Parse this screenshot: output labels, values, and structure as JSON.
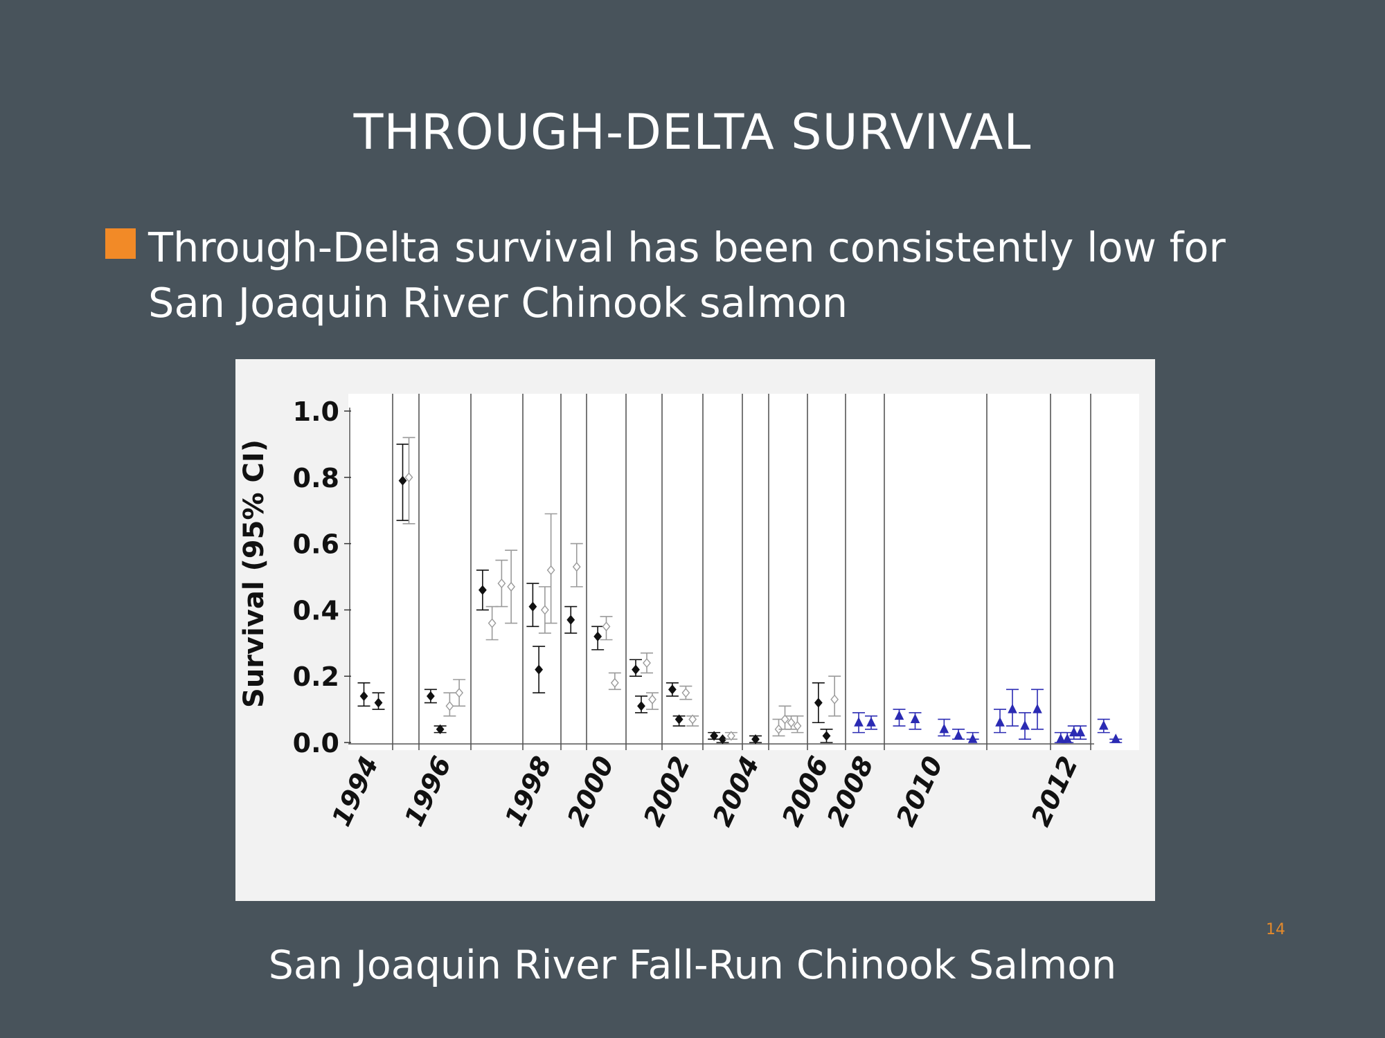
{
  "slide": {
    "title": "THROUGH-DELTA SURVIVAL",
    "bullet": "Through-Delta survival has been consistently low for San Joaquin River Chinook salmon",
    "caption": "San Joaquin River Fall-Run Chinook Salmon",
    "page_number": "14",
    "colors": {
      "background": "#48535b",
      "bullet_marker": "#f28a27",
      "page_number": "#e58a2b"
    }
  },
  "chart_data": {
    "type": "scatter",
    "title": "",
    "ylabel": "Survival (95% CI)",
    "xlabel": "",
    "ylim": [
      0.0,
      1.0
    ],
    "y_ticks": [
      "0.0",
      "0.2",
      "0.4",
      "0.6",
      "0.8",
      "1.0"
    ],
    "x_ticks": [
      "1994",
      "1996",
      "1998",
      "2000",
      "2002",
      "2004",
      "2006",
      "2008",
      "2010",
      "2012"
    ],
    "grid": "vertical separators between release groups",
    "series": [
      {
        "color": "#111111",
        "marker": "filled diamond",
        "points": [
          {
            "year": "1994",
            "y": 0.14,
            "lo": 0.11,
            "hi": 0.18
          },
          {
            "year": "1994",
            "y": 0.12,
            "lo": 0.1,
            "hi": 0.15
          },
          {
            "year": "1995",
            "y": 0.79,
            "lo": 0.67,
            "hi": 0.9
          },
          {
            "year": "1996",
            "y": 0.14,
            "lo": 0.12,
            "hi": 0.16
          },
          {
            "year": "1996",
            "y": 0.04,
            "lo": 0.03,
            "hi": 0.05
          },
          {
            "year": "1997",
            "y": 0.46,
            "lo": 0.4,
            "hi": 0.52
          },
          {
            "year": "1998",
            "y": 0.41,
            "lo": 0.35,
            "hi": 0.48
          },
          {
            "year": "1998",
            "y": 0.22,
            "lo": 0.15,
            "hi": 0.29
          },
          {
            "year": "1999",
            "y": 0.37,
            "lo": 0.33,
            "hi": 0.41
          },
          {
            "year": "2000",
            "y": 0.32,
            "lo": 0.28,
            "hi": 0.35
          },
          {
            "year": "2001",
            "y": 0.22,
            "lo": 0.2,
            "hi": 0.25
          },
          {
            "year": "2001",
            "y": 0.11,
            "lo": 0.09,
            "hi": 0.14
          },
          {
            "year": "2002",
            "y": 0.16,
            "lo": 0.14,
            "hi": 0.18
          },
          {
            "year": "2002",
            "y": 0.07,
            "lo": 0.05,
            "hi": 0.08
          },
          {
            "year": "2003",
            "y": 0.02,
            "lo": 0.01,
            "hi": 0.03
          },
          {
            "year": "2003",
            "y": 0.01,
            "lo": 0.0,
            "hi": 0.01
          },
          {
            "year": "2004",
            "y": 0.01,
            "lo": 0.0,
            "hi": 0.02
          },
          {
            "year": "2006",
            "y": 0.12,
            "lo": 0.06,
            "hi": 0.18
          },
          {
            "year": "2006",
            "y": 0.02,
            "lo": 0.0,
            "hi": 0.04
          }
        ]
      },
      {
        "color": "#9a9a9a",
        "marker": "open diamond",
        "points": [
          {
            "year": "1995",
            "y": 0.8,
            "lo": 0.66,
            "hi": 0.92
          },
          {
            "year": "1996",
            "y": 0.11,
            "lo": 0.08,
            "hi": 0.15
          },
          {
            "year": "1996",
            "y": 0.15,
            "lo": 0.11,
            "hi": 0.19
          },
          {
            "year": "1997",
            "y": 0.36,
            "lo": 0.31,
            "hi": 0.41
          },
          {
            "year": "1997",
            "y": 0.48,
            "lo": 0.41,
            "hi": 0.55
          },
          {
            "year": "1997",
            "y": 0.47,
            "lo": 0.36,
            "hi": 0.58
          },
          {
            "year": "1998",
            "y": 0.4,
            "lo": 0.33,
            "hi": 0.47
          },
          {
            "year": "1998",
            "y": 0.52,
            "lo": 0.36,
            "hi": 0.69
          },
          {
            "year": "1999",
            "y": 0.53,
            "lo": 0.47,
            "hi": 0.6
          },
          {
            "year": "2000",
            "y": 0.35,
            "lo": 0.31,
            "hi": 0.38
          },
          {
            "year": "2000",
            "y": 0.18,
            "lo": 0.16,
            "hi": 0.21
          },
          {
            "year": "2001",
            "y": 0.24,
            "lo": 0.21,
            "hi": 0.27
          },
          {
            "year": "2001",
            "y": 0.13,
            "lo": 0.1,
            "hi": 0.15
          },
          {
            "year": "2002",
            "y": 0.15,
            "lo": 0.13,
            "hi": 0.17
          },
          {
            "year": "2002",
            "y": 0.07,
            "lo": 0.05,
            "hi": 0.08
          },
          {
            "year": "2003",
            "y": 0.02,
            "lo": 0.01,
            "hi": 0.03
          },
          {
            "year": "2005",
            "y": 0.04,
            "lo": 0.02,
            "hi": 0.07
          },
          {
            "year": "2005",
            "y": 0.07,
            "lo": 0.04,
            "hi": 0.11
          },
          {
            "year": "2005",
            "y": 0.06,
            "lo": 0.04,
            "hi": 0.08
          },
          {
            "year": "2005",
            "y": 0.05,
            "lo": 0.03,
            "hi": 0.08
          },
          {
            "year": "2006",
            "y": 0.13,
            "lo": 0.08,
            "hi": 0.2
          }
        ]
      },
      {
        "color": "#2b2bb3",
        "marker": "filled triangle",
        "points": [
          {
            "year": "2007",
            "y": 0.06,
            "lo": 0.03,
            "hi": 0.09
          },
          {
            "year": "2007",
            "y": 0.06,
            "lo": 0.04,
            "hi": 0.08
          },
          {
            "year": "2008",
            "y": 0.08,
            "lo": 0.05,
            "hi": 0.1
          },
          {
            "year": "2008",
            "y": 0.07,
            "lo": 0.04,
            "hi": 0.09
          },
          {
            "year": "2009",
            "y": 0.04,
            "lo": 0.02,
            "hi": 0.07
          },
          {
            "year": "2009",
            "y": 0.02,
            "lo": 0.01,
            "hi": 0.04
          },
          {
            "year": "2009",
            "y": 0.01,
            "lo": 0.01,
            "hi": 0.03
          },
          {
            "year": "2010",
            "y": 0.06,
            "lo": 0.03,
            "hi": 0.1
          },
          {
            "year": "2010",
            "y": 0.1,
            "lo": 0.05,
            "hi": 0.16
          },
          {
            "year": "2010",
            "y": 0.05,
            "lo": 0.01,
            "hi": 0.09
          },
          {
            "year": "2010",
            "y": 0.1,
            "lo": 0.04,
            "hi": 0.16
          },
          {
            "year": "2011",
            "y": 0.01,
            "lo": 0.0,
            "hi": 0.03
          },
          {
            "year": "2011",
            "y": 0.01,
            "lo": 0.0,
            "hi": 0.03
          },
          {
            "year": "2011",
            "y": 0.03,
            "lo": 0.01,
            "hi": 0.05
          },
          {
            "year": "2011",
            "y": 0.03,
            "lo": 0.01,
            "hi": 0.05
          },
          {
            "year": "2012",
            "y": 0.05,
            "lo": 0.03,
            "hi": 0.07
          },
          {
            "year": "2012",
            "y": 0.01,
            "lo": 0.0,
            "hi": 0.01
          }
        ]
      }
    ]
  }
}
